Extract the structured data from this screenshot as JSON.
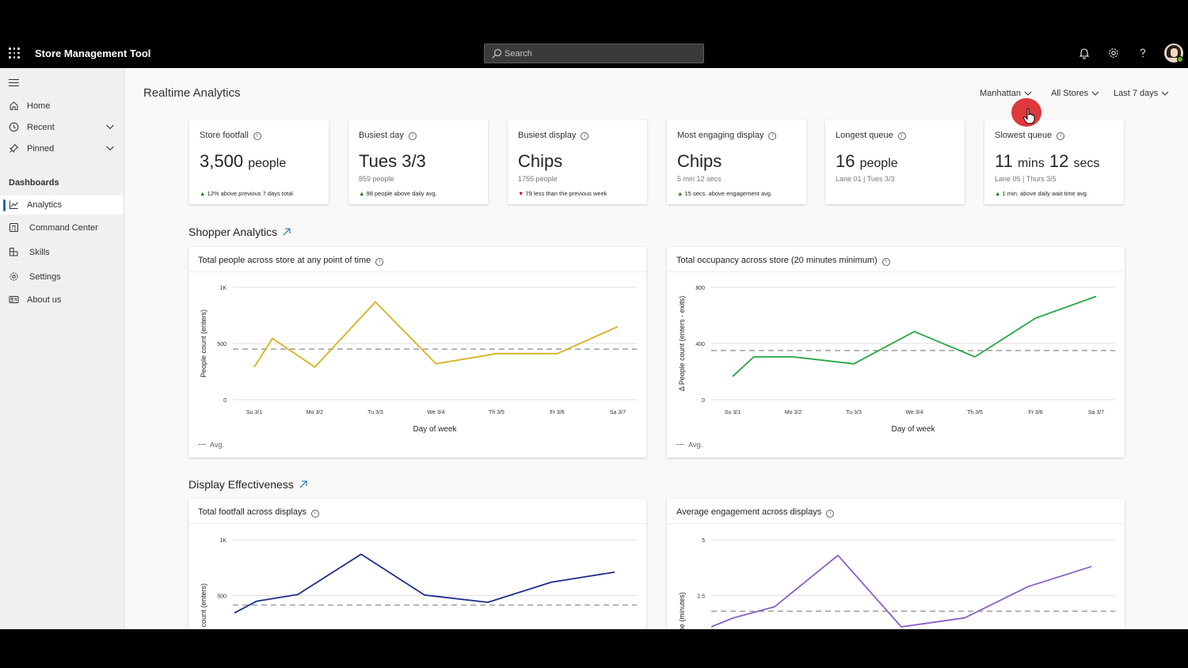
{
  "app": {
    "title": "Store Management Tool"
  },
  "search": {
    "placeholder": "Search"
  },
  "topbar_icons": [
    "notification-bell-icon",
    "gear-icon",
    "help-icon"
  ],
  "sidebar": {
    "items": [
      {
        "label": "Home",
        "icon": "home-icon"
      },
      {
        "label": "Recent",
        "icon": "clock-icon",
        "expandable": true
      },
      {
        "label": "Pinned",
        "icon": "pin-icon",
        "expandable": true
      }
    ],
    "section_label": "Dashboards",
    "dashboards": [
      {
        "label": "Analytics",
        "icon": "chart-icon",
        "active": true
      },
      {
        "label": "Command Center",
        "icon": "calculator-icon"
      },
      {
        "label": "Skills",
        "icon": "puzzle-icon"
      },
      {
        "label": "Settings",
        "icon": "gear-icon"
      },
      {
        "label": "About us",
        "icon": "contact-card-icon"
      }
    ]
  },
  "page": {
    "title": "Realtime Analytics"
  },
  "filters": [
    {
      "label": "Manhattan"
    },
    {
      "label": "All Stores"
    },
    {
      "label": "Last 7 days"
    }
  ],
  "kpis": [
    {
      "title": "Store footfall",
      "value": "3,500",
      "unit": "people",
      "sub": "",
      "trend": "12% above previous 7 days total",
      "direction": "up"
    },
    {
      "title": "Busiest day",
      "value": "Tues 3/3",
      "unit": "",
      "sub": "859 people",
      "trend": "98 people above daily avg.",
      "direction": "up"
    },
    {
      "title": "Busiest display",
      "value": "Chips",
      "unit": "",
      "sub": "1755 people",
      "trend": "79 less than the previous week",
      "direction": "down"
    },
    {
      "title": "Most engaging display",
      "value": "Chips",
      "unit": "",
      "sub": "5 min 12 secs",
      "trend": "15 secs. above engagement avg.",
      "direction": "up"
    },
    {
      "title": "Longest queue",
      "value": "16",
      "unit": "people",
      "sub": "Lane 01 | Tues 3/3",
      "trend": "",
      "direction": ""
    },
    {
      "title": "Slowest queue",
      "value": "11",
      "unit": "mins",
      "value2": "12",
      "unit2": "secs",
      "sub": "Lane 05 | Thurs 3/5",
      "trend": "1 min. above daily wait time avg.",
      "direction": "up"
    }
  ],
  "sections": {
    "shopper": "Shopper Analytics",
    "display": "Display Effectiveness"
  },
  "chart_data": [
    {
      "type": "line",
      "title": "Total people across store at any point of time",
      "xlabel": "Day of week",
      "ylabel": "People count (enters)",
      "categories": [
        "Su 3/1",
        "Mo 3/2",
        "Tu 3/3",
        "We 3/4",
        "Th 3/5",
        "Fr 3/6",
        "Sa 3/7"
      ],
      "yticks": [
        "0",
        "500",
        "1K"
      ],
      "ylim": [
        0,
        1000
      ],
      "x": [
        0,
        0.3,
        1,
        2,
        3,
        4,
        5,
        6
      ],
      "series": [
        {
          "values": [
            290,
            545,
            290,
            870,
            320,
            410,
            410,
            650
          ]
        }
      ],
      "avg": 450,
      "avg_label": "Avg.",
      "color": "#d6b21e",
      "grid": true
    },
    {
      "type": "line",
      "title": "Total occupancy across store (20 minutes minimum)",
      "xlabel": "Day of week",
      "ylabel": "Δ People count (enters - exits)",
      "categories": [
        "Su 3/1",
        "Mo 3/2",
        "Tu 3/3",
        "We 3/4",
        "Th 3/5",
        "Fr 3/6",
        "Sa 3/7"
      ],
      "yticks": [
        "0",
        "400",
        "800"
      ],
      "ylim": [
        0,
        800
      ],
      "x": [
        0,
        0.35,
        1,
        2,
        3,
        4,
        5,
        6
      ],
      "series": [
        {
          "values": [
            165,
            305,
            305,
            255,
            485,
            305,
            580,
            735
          ]
        }
      ],
      "avg": 350,
      "avg_label": "Avg.",
      "color": "#27a745",
      "grid": true
    },
    {
      "type": "line",
      "title": "Total footfall across displays",
      "xlabel": "",
      "ylabel": "People count (enters)",
      "yticks": [
        "500",
        "1K"
      ],
      "ylim": [
        0,
        1000
      ],
      "x": [
        0,
        0.35,
        1,
        2,
        3,
        4,
        5,
        6
      ],
      "series": [
        {
          "values": [
            345,
            450,
            510,
            870,
            505,
            440,
            620,
            710
          ]
        }
      ],
      "avg": 415,
      "color": "#1c2e8c",
      "grid": true
    },
    {
      "type": "line",
      "title": "Average engagement across displays",
      "xlabel": "",
      "ylabel": "Time (minutes)",
      "yticks": [
        "2.5",
        "5"
      ],
      "ylim": [
        0,
        5
      ],
      "x": [
        0,
        0.35,
        1,
        2,
        3,
        4,
        5,
        6
      ],
      "series": [
        {
          "values": [
            1.1,
            1.5,
            2.0,
            4.3,
            1.1,
            1.5,
            2.9,
            3.8
          ]
        }
      ],
      "avg": 1.8,
      "color": "#8a5fc8",
      "grid": true
    }
  ]
}
